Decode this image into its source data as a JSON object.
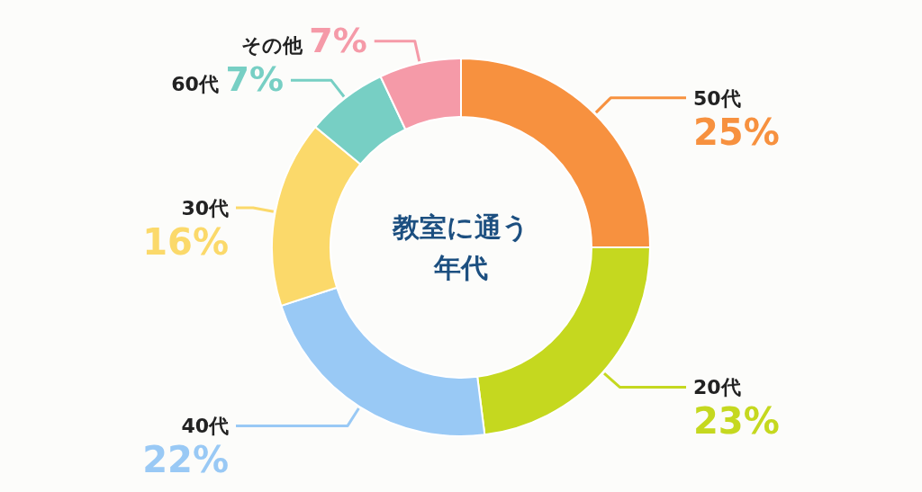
{
  "chart_data": {
    "type": "donut",
    "title": "教室に通う年代",
    "categories": [
      "50代",
      "20代",
      "40代",
      "30代",
      "60代",
      "その他"
    ],
    "values": [
      25,
      23,
      22,
      16,
      7,
      7
    ],
    "colors": [
      "#f7913f",
      "#c5d81f",
      "#99c9f5",
      "#fbd96a",
      "#77cfc4",
      "#f59aa8"
    ],
    "value_labels": [
      "25%",
      "23%",
      "22%",
      "16%",
      "7%",
      "7%"
    ]
  }
}
